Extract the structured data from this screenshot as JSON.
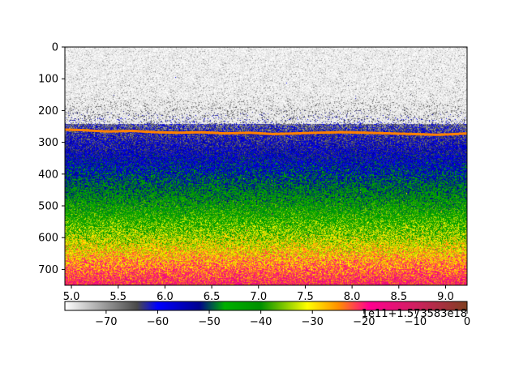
{
  "chart_data": {
    "type": "heatmap",
    "title": "",
    "xlabel": "",
    "ylabel": "",
    "xlim": [
      4.93,
      9.23
    ],
    "ylim": [
      750,
      0
    ],
    "x_ticks": [
      {
        "value": 5.0,
        "label": "5.0"
      },
      {
        "value": 5.5,
        "label": "5.5"
      },
      {
        "value": 6.0,
        "label": "6.0"
      },
      {
        "value": 6.5,
        "label": "6.5"
      },
      {
        "value": 7.0,
        "label": "7.0"
      },
      {
        "value": 7.5,
        "label": "7.5"
      },
      {
        "value": 8.0,
        "label": "8.0"
      },
      {
        "value": 8.5,
        "label": "8.5"
      },
      {
        "value": 9.0,
        "label": "9.0"
      }
    ],
    "x_offset_label": "1e11+1.573583e18",
    "y_ticks": [
      {
        "value": 0,
        "label": "0"
      },
      {
        "value": 100,
        "label": "100"
      },
      {
        "value": 200,
        "label": "200"
      },
      {
        "value": 300,
        "label": "300"
      },
      {
        "value": 400,
        "label": "400"
      },
      {
        "value": 500,
        "label": "500"
      },
      {
        "value": 600,
        "label": "600"
      },
      {
        "value": 700,
        "label": "700"
      }
    ],
    "colorbar": {
      "orientation": "horizontal",
      "range": [
        -78,
        0
      ],
      "ticks": [
        {
          "value": -70,
          "label": "−70"
        },
        {
          "value": -60,
          "label": "−60"
        },
        {
          "value": -50,
          "label": "−50"
        },
        {
          "value": -40,
          "label": "−40"
        },
        {
          "value": -30,
          "label": "−30"
        },
        {
          "value": -20,
          "label": "−20"
        },
        {
          "value": -10,
          "label": "−10"
        },
        {
          "value": 0,
          "label": "0"
        }
      ],
      "colormap": [
        {
          "value": -78,
          "color": "#ffffff"
        },
        {
          "value": -64,
          "color": "#4a4a4a"
        },
        {
          "value": -60,
          "color": "#0000ff"
        },
        {
          "value": -52,
          "color": "#000090"
        },
        {
          "value": -47,
          "color": "#00b000"
        },
        {
          "value": -40,
          "color": "#009000"
        },
        {
          "value": -31,
          "color": "#ffff00"
        },
        {
          "value": -25,
          "color": "#ff9000"
        },
        {
          "value": -19,
          "color": "#ff0090"
        },
        {
          "value": -10,
          "color": "#d02060"
        },
        {
          "value": 0,
          "color": "#804020"
        }
      ]
    },
    "depth_profile": [
      {
        "depth": 0,
        "value": -78
      },
      {
        "depth": 150,
        "value": -76
      },
      {
        "depth": 220,
        "value": -68
      },
      {
        "depth": 262,
        "value": -63
      },
      {
        "depth": 300,
        "value": -60
      },
      {
        "depth": 380,
        "value": -54
      },
      {
        "depth": 450,
        "value": -47
      },
      {
        "depth": 530,
        "value": -41
      },
      {
        "depth": 600,
        "value": -34
      },
      {
        "depth": 660,
        "value": -27
      },
      {
        "depth": 720,
        "value": -21
      },
      {
        "depth": 750,
        "value": -18
      }
    ],
    "surface_line": {
      "color": "#ff8000",
      "depth": [
        260,
        262,
        266,
        264,
        268,
        270,
        268,
        272,
        270,
        274,
        272,
        270,
        268,
        270,
        272,
        274,
        276,
        275,
        272
      ],
      "x": [
        4.93,
        5.15,
        5.4,
        5.65,
        5.9,
        6.15,
        6.4,
        6.65,
        6.9,
        7.15,
        7.4,
        7.65,
        7.9,
        8.15,
        8.4,
        8.65,
        8.9,
        9.05,
        9.23
      ]
    }
  }
}
